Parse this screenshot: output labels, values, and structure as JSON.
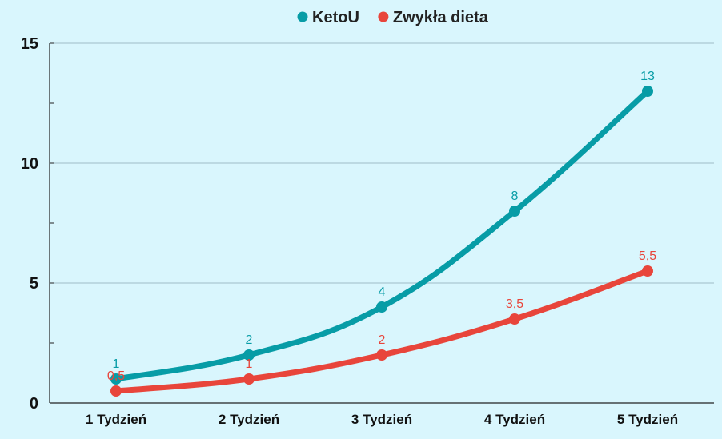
{
  "chart_data": {
    "type": "line",
    "title": "",
    "xlabel": "",
    "ylabel": "",
    "categories": [
      "1 Tydzień",
      "2 Tydzień",
      "3 Tydzień",
      "4 Tydzień",
      "5 Tydzień"
    ],
    "ylim": [
      0,
      15
    ],
    "yticks": [
      0,
      5,
      10,
      15
    ],
    "grid": true,
    "legend_position": "top-center",
    "series": [
      {
        "name": "KetoU",
        "color": "#079ca6",
        "values": [
          1,
          2,
          4,
          8,
          13
        ],
        "labels": [
          "1",
          "2",
          "4",
          "8",
          "13"
        ]
      },
      {
        "name": "Zwykła dieta",
        "color": "#e8453b",
        "values": [
          0.5,
          1,
          2,
          3.5,
          5.5
        ],
        "labels": [
          "0,5",
          "1",
          "2",
          "3,5",
          "5,5"
        ]
      }
    ]
  }
}
